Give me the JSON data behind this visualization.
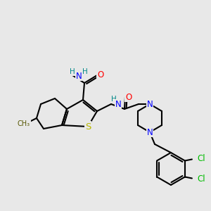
{
  "background_color": "#e8e8e8",
  "bond_color": "#000000",
  "bond_width": 1.5,
  "atom_colors": {
    "N": "#0000ff",
    "O": "#ff0000",
    "S": "#b8b800",
    "Cl": "#00bb00",
    "C": "#000000",
    "H": "#008888"
  },
  "font_size": 8.5
}
